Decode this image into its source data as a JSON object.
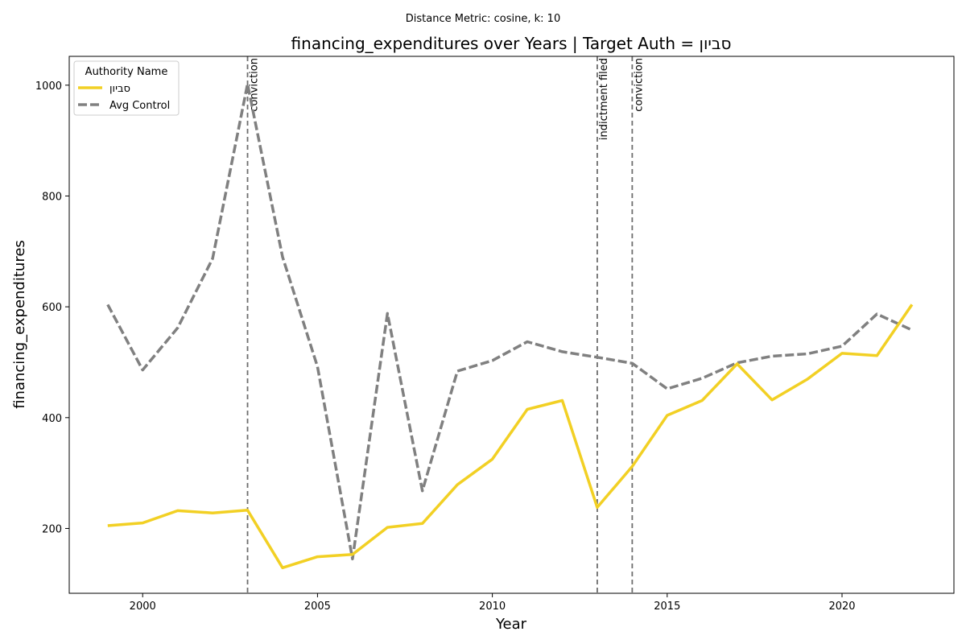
{
  "chart_data": {
    "type": "line",
    "suptitle": "Distance Metric: cosine, k: 10",
    "title": "financing_expenditures over Years | Target Auth = סביון",
    "xlabel": "Year",
    "ylabel": "financing_expenditures",
    "xlim": [
      1997.9,
      2023.2
    ],
    "ylim": [
      83,
      1052
    ],
    "xticks": [
      2000,
      2005,
      2010,
      2015,
      2020
    ],
    "yticks": [
      200,
      400,
      600,
      800,
      1000
    ],
    "grid": false,
    "legend": {
      "title": "Authority Name",
      "placement": "top-left"
    },
    "x": [
      1999,
      2000,
      2001,
      2002,
      2003,
      2004,
      2005,
      2006,
      2007,
      2008,
      2009,
      2010,
      2011,
      2012,
      2013,
      2014,
      2015,
      2016,
      2017,
      2018,
      2019,
      2020,
      2021,
      2022
    ],
    "series": [
      {
        "name": "סביון",
        "color": "#f2d024",
        "style": "solid",
        "values": [
          205,
          210,
          232,
          228,
          233,
          129,
          149,
          153,
          202,
          209,
          279,
          325,
          415,
          431,
          238,
          312,
          404,
          431,
          497,
          432,
          469,
          516,
          512,
          604
        ]
      },
      {
        "name": "Avg Control",
        "color": "#808080",
        "style": "dashed",
        "values": [
          604,
          486,
          562,
          687,
          1002,
          690,
          492,
          145,
          588,
          268,
          484,
          503,
          537,
          519,
          509,
          498,
          452,
          471,
          499,
          511,
          515,
          529,
          587,
          558
        ]
      }
    ],
    "events": [
      {
        "x": 2003,
        "label": "conviction"
      },
      {
        "x": 2013,
        "label": "indictment filed"
      },
      {
        "x": 2014,
        "label": "conviction"
      }
    ]
  }
}
